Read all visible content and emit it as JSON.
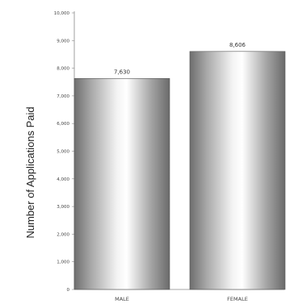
{
  "chart_data": {
    "type": "bar",
    "title": "",
    "xlabel": "",
    "ylabel": "Number of Applications Paid",
    "categories": [
      "MALE",
      "FEMALE"
    ],
    "values": [
      7630,
      8606
    ],
    "value_labels": [
      "7,630",
      "8,606"
    ],
    "ylim": [
      0,
      10000
    ],
    "yticks": [
      0,
      1000,
      2000,
      3000,
      4000,
      5000,
      6000,
      7000,
      8000,
      9000,
      10000
    ],
    "ytick_labels": [
      "0",
      "1,000",
      "2,000",
      "3,000",
      "4,000",
      "5,000",
      "6,000",
      "7,000",
      "8,000",
      "9,000",
      "10,000"
    ],
    "grid": false,
    "legend": "none",
    "bar_style": "silver-gradient"
  }
}
